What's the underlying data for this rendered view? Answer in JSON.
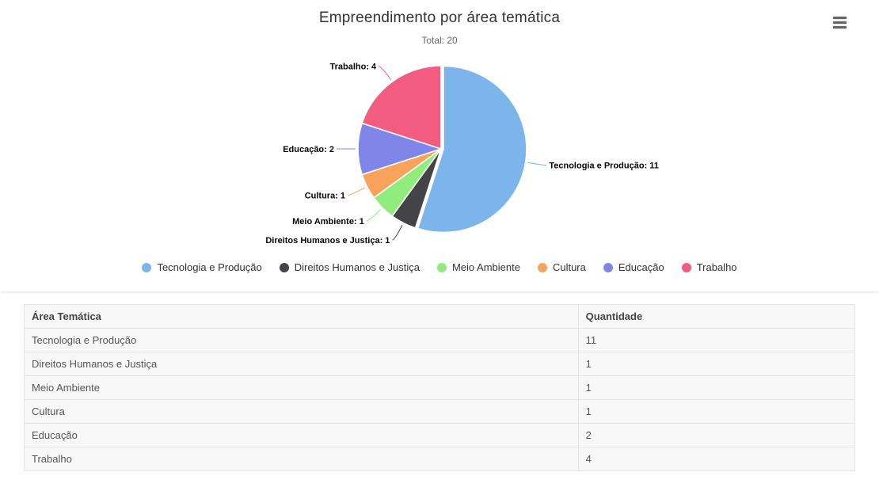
{
  "chart_data": {
    "type": "pie",
    "title": "Empreendimento por área temática",
    "subtitle": "Total: 20",
    "total": 20,
    "categories": [
      "Tecnologia e Produção",
      "Direitos Humanos e Justiça",
      "Meio Ambiente",
      "Cultura",
      "Educação",
      "Trabalho"
    ],
    "values": [
      11,
      1,
      1,
      1,
      2,
      4
    ],
    "colors": [
      "#7cb5ec",
      "#434348",
      "#90ed7d",
      "#f7a35c",
      "#8085e9",
      "#f15c80"
    ],
    "data_labels": [
      "Tecnologia e Produção: 11",
      "Direitos Humanos e Justiça: 1",
      "Meio Ambiente: 1",
      "Cultura: 1",
      "Educação: 2",
      "Trabalho: 4"
    ],
    "legend": [
      "Tecnologia e Produção",
      "Direitos Humanos e Justiça",
      "Meio Ambiente",
      "Cultura",
      "Educação",
      "Trabalho"
    ],
    "legend_position": "bottom"
  },
  "export_menu": {
    "icon": "hamburger-menu-icon"
  },
  "table": {
    "columns": [
      "Área Temática",
      "Quantidade"
    ],
    "rows": [
      [
        "Tecnologia e Produção",
        "11"
      ],
      [
        "Direitos Humanos e Justiça",
        "1"
      ],
      [
        "Meio Ambiente",
        "1"
      ],
      [
        "Cultura",
        "1"
      ],
      [
        "Educação",
        "2"
      ],
      [
        "Trabalho",
        "4"
      ]
    ]
  }
}
